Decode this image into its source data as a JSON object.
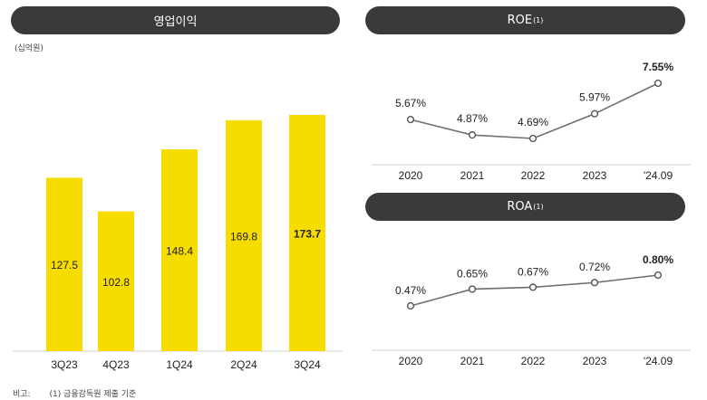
{
  "left": {
    "title": "영업이익",
    "unit": "(십억원)"
  },
  "roe": {
    "title": "ROE",
    "sup": "(1)"
  },
  "roa": {
    "title": "ROA",
    "sup": "(1)"
  },
  "footnote": {
    "label": "비고:",
    "text": "(1) 금융감독원 제출 기준"
  },
  "colors": {
    "bar": "#f7dc00",
    "pill": "#3a3a3a",
    "line": "#6e6e6e"
  },
  "chart_data": [
    {
      "type": "bar",
      "title": "영업이익",
      "unit": "(십억원)",
      "categories": [
        "3Q23",
        "4Q23",
        "1Q24",
        "2Q24",
        "3Q24"
      ],
      "values": [
        127.5,
        102.8,
        148.4,
        169.8,
        173.7
      ],
      "value_labels": [
        "127.5",
        "102.8",
        "148.4",
        "169.8",
        "173.7"
      ],
      "highlight_index": 4,
      "ylim": [
        0,
        180
      ]
    },
    {
      "type": "line",
      "title": "ROE",
      "categories": [
        "2020",
        "2021",
        "2022",
        "2023",
        "'24.09"
      ],
      "values": [
        5.67,
        4.87,
        4.69,
        5.97,
        7.55
      ],
      "value_labels": [
        "5.67%",
        "4.87%",
        "4.69%",
        "5.97%",
        "7.55%"
      ],
      "highlight_index": 4
    },
    {
      "type": "line",
      "title": "ROA",
      "categories": [
        "2020",
        "2021",
        "2022",
        "2023",
        "'24.09"
      ],
      "values": [
        0.47,
        0.65,
        0.67,
        0.72,
        0.8
      ],
      "value_labels": [
        "0.47%",
        "0.65%",
        "0.67%",
        "0.72%",
        "0.80%"
      ],
      "highlight_index": 4
    }
  ]
}
